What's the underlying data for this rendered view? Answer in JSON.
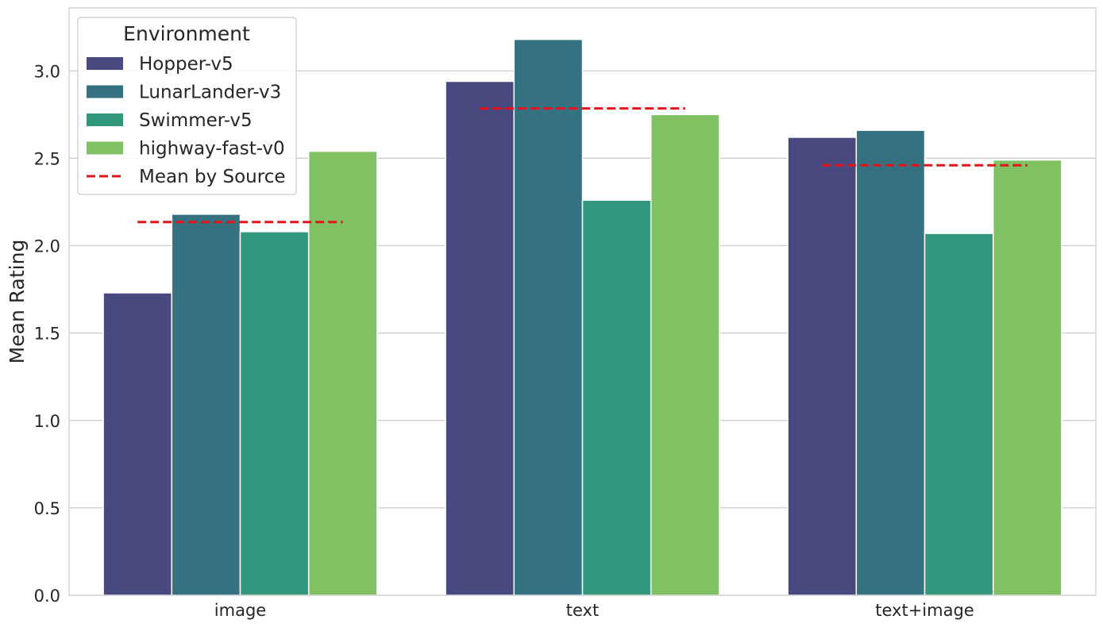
{
  "chart_data": {
    "type": "bar",
    "title": "",
    "xlabel": "",
    "ylabel": "Mean Rating",
    "ylim": [
      0,
      3.36
    ],
    "yticks": [
      "0.0",
      "0.5",
      "1.0",
      "1.5",
      "2.0",
      "2.5",
      "3.0"
    ],
    "grid": true,
    "categories": [
      "image",
      "text",
      "text+image"
    ],
    "series": [
      {
        "name": "Hopper-v5",
        "color": "#48497e",
        "values": [
          1.73,
          2.94,
          2.62
        ]
      },
      {
        "name": "LunarLander-v3",
        "color": "#357281",
        "values": [
          2.18,
          3.18,
          2.66
        ]
      },
      {
        "name": "Swimmer-v5",
        "color": "#32987b",
        "values": [
          2.08,
          2.26,
          2.07
        ]
      },
      {
        "name": "highway-fast-v0",
        "color": "#80c263",
        "values": [
          2.54,
          2.75,
          2.49
        ]
      }
    ],
    "mean_line": {
      "name": "Mean by Source",
      "color": "#e5141a",
      "style": "dashed",
      "values": [
        2.135,
        2.785,
        2.46
      ]
    },
    "legend": {
      "title": "Environment",
      "placement": "top-left"
    }
  }
}
